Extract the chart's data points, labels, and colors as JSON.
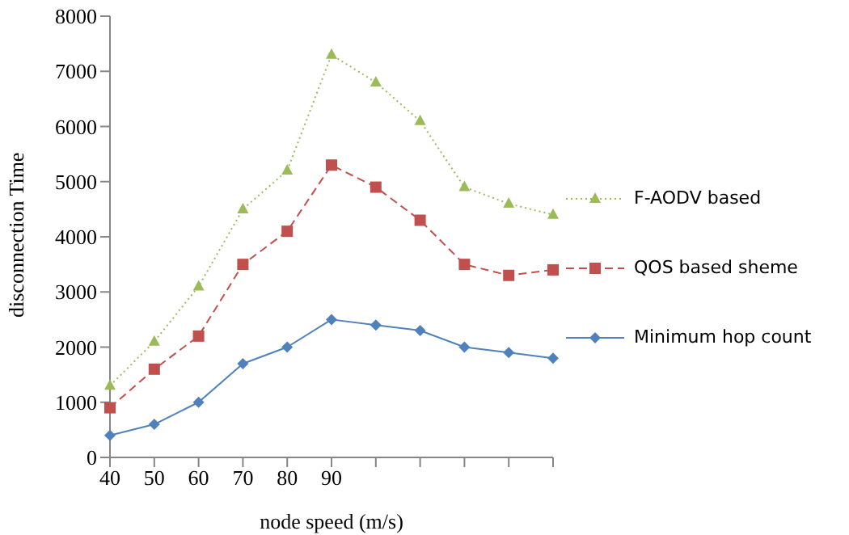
{
  "chart_data": {
    "type": "line",
    "xlabel": "node speed (m/s)",
    "ylabel": "disconnection Time",
    "categories": [
      "40",
      "50",
      "60",
      "70",
      "80",
      "90",
      null,
      null,
      null,
      null,
      null
    ],
    "series": [
      {
        "name": "F-AODV based",
        "color": "#9bbb59",
        "marker": "triangle",
        "line_style": "dotted",
        "values": [
          1300,
          2100,
          3100,
          4500,
          5200,
          7300,
          6800,
          6100,
          4900,
          4600,
          4400
        ]
      },
      {
        "name": "QOS based sheme",
        "color": "#c0504d",
        "marker": "square",
        "line_style": "dashed",
        "values": [
          900,
          1600,
          2200,
          3500,
          4100,
          5300,
          4900,
          4300,
          3500,
          3300,
          3400
        ]
      },
      {
        "name": "Minimum hop count",
        "color": "#4f81bd",
        "marker": "diamond",
        "line_style": "solid",
        "values": [
          400,
          600,
          1000,
          1700,
          2000,
          2500,
          2400,
          2300,
          2000,
          1900,
          1800
        ]
      }
    ],
    "ylim": [
      0,
      8000
    ],
    "yticks": [
      0,
      1000,
      2000,
      3000,
      4000,
      5000,
      6000,
      7000,
      8000
    ],
    "grid": false,
    "legend": "right"
  }
}
